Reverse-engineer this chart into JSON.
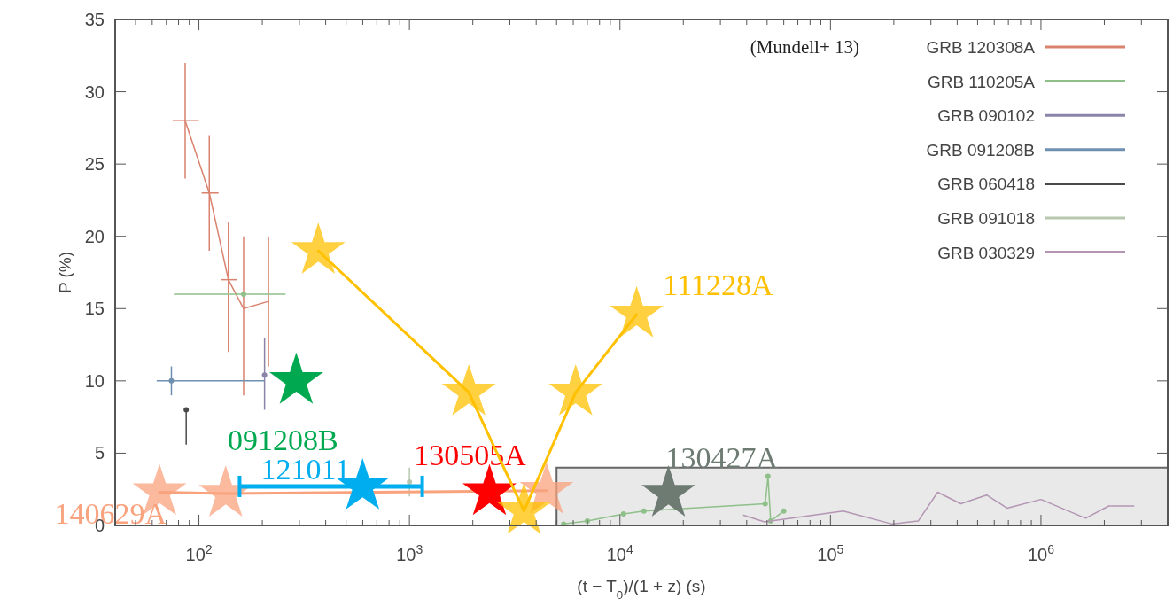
{
  "chart_data": {
    "type": "line",
    "xlabel": "(t − T$_{0}$)/(1 + z) (s)",
    "ylabel": "P (%)",
    "log": "x",
    "xlim": [
      40,
      4000000
    ],
    "ylim": [
      0,
      35
    ],
    "xticks": [
      {
        "value": 50,
        "label": null
      },
      {
        "value": 60,
        "label": null
      },
      {
        "value": 70,
        "label": null
      },
      {
        "value": 80,
        "label": null
      },
      {
        "value": 90,
        "label": null
      },
      {
        "value": 100,
        "label": "10$^{2}$"
      },
      {
        "value": 200,
        "label": null
      },
      {
        "value": 300,
        "label": null
      },
      {
        "value": 400,
        "label": null
      },
      {
        "value": 500,
        "label": null
      },
      {
        "value": 600,
        "label": null
      },
      {
        "value": 700,
        "label": null
      },
      {
        "value": 800,
        "label": null
      },
      {
        "value": 900,
        "label": null
      },
      {
        "value": 1000,
        "label": "10$^{3}$"
      },
      {
        "value": 2000,
        "label": null
      },
      {
        "value": 3000,
        "label": null
      },
      {
        "value": 4000,
        "label": null
      },
      {
        "value": 5000,
        "label": null
      },
      {
        "value": 6000,
        "label": null
      },
      {
        "value": 7000,
        "label": null
      },
      {
        "value": 8000,
        "label": null
      },
      {
        "value": 9000,
        "label": null
      },
      {
        "value": 10000,
        "label": "10$^{4}$"
      },
      {
        "value": 20000,
        "label": null
      },
      {
        "value": 30000,
        "label": null
      },
      {
        "value": 40000,
        "label": null
      },
      {
        "value": 50000,
        "label": null
      },
      {
        "value": 60000,
        "label": null
      },
      {
        "value": 70000,
        "label": null
      },
      {
        "value": 80000,
        "label": null
      },
      {
        "value": 90000,
        "label": null
      },
      {
        "value": 100000,
        "label": "10$^{5}$"
      },
      {
        "value": 200000,
        "label": null
      },
      {
        "value": 300000,
        "label": null
      },
      {
        "value": 400000,
        "label": null
      },
      {
        "value": 500000,
        "label": null
      },
      {
        "value": 600000,
        "label": null
      },
      {
        "value": 700000,
        "label": null
      },
      {
        "value": 800000,
        "label": null
      },
      {
        "value": 900000,
        "label": null
      },
      {
        "value": 1000000,
        "label": "10$^{6}$"
      },
      {
        "value": 2000000,
        "label": null
      },
      {
        "value": 3000000,
        "label": null
      }
    ],
    "yticks": [
      0,
      5,
      10,
      15,
      20,
      25,
      30,
      35
    ],
    "legend": "top right",
    "annotations": [
      "(Mundell+ 13)"
    ],
    "series": [
      {
        "type": "area",
        "color": "#e8e9e8",
        "x": [
          5000,
          4000000
        ],
        "values": [
          4,
          4
        ]
      },
      {
        "name": "GRB 120308A",
        "color": "#d9826e",
        "marker": "none",
        "x": [
          86,
          112,
          138,
          163,
          214
        ],
        "values": [
          28,
          23,
          17,
          15,
          15.5
        ],
        "errors": [
          [
            24,
            32
          ],
          [
            19,
            27
          ],
          [
            12,
            21
          ],
          [
            9,
            20
          ],
          [
            11,
            20
          ]
        ],
        "xerrors": [
          [
            75,
            100
          ],
          [
            103,
            124
          ],
          [
            128,
            152
          ],
          null,
          null
        ]
      },
      {
        "name": "GRB 110205A",
        "color": "#8fc08a",
        "marker": "circle",
        "x": [
          163,
          2000,
          5400,
          7000,
          10400,
          13000,
          49000,
          50500,
          52000,
          60000
        ],
        "values": [
          16,
          null,
          0.1,
          0.3,
          0.8,
          1.0,
          1.5,
          3.4,
          0.3,
          1.0
        ],
        "xerrors": [
          [
            76,
            258
          ],
          null,
          null,
          null,
          null,
          null,
          null,
          null,
          null,
          null
        ]
      },
      {
        "name": "GRB 090102",
        "type": "scatter",
        "color": "#8a84a8",
        "marker": "circle",
        "x": [
          205
        ],
        "values": [
          10.4
        ],
        "errors": [
          [
            8,
            13
          ]
        ]
      },
      {
        "name": "GRB 091208B",
        "type": "scatter",
        "color": "#6f8fb0",
        "marker": "circle",
        "x": [
          74
        ],
        "values": [
          10
        ],
        "errors": [
          [
            9,
            11
          ]
        ],
        "xerrors": [
          [
            63,
            205
          ]
        ]
      },
      {
        "name": "GRB 060418",
        "type": "scatter",
        "color": "#4a4a4a",
        "marker": "circle",
        "x": [
          87
        ],
        "values": [
          8
        ],
        "errors": [
          [
            5.6,
            8
          ]
        ]
      },
      {
        "name": "GRB 091018",
        "type": "scatter",
        "color": "#b8c8b0",
        "marker": "circle",
        "x": [
          1000
        ],
        "values": [
          3
        ],
        "errors": [
          [
            2,
            4
          ]
        ]
      },
      {
        "name": "GRB 030329",
        "color": "#b496b4",
        "marker": "none",
        "x": [
          38700,
          48600,
          115000,
          196000,
          261000,
          323000,
          416000,
          552000,
          690000,
          1000000,
          1630000,
          2100000,
          2760000
        ],
        "values": [
          0.7,
          0.25,
          1.0,
          0.1,
          0.3,
          2.3,
          1.5,
          2.1,
          1.2,
          1.8,
          0.5,
          1.35,
          1.35
        ]
      },
      {
        "name": "140629A",
        "color": "#f9a27e",
        "marker": "star",
        "x": [
          65,
          134,
          4480
        ],
        "values": [
          2.3,
          2.2,
          2.4
        ]
      },
      {
        "name": "121011",
        "type": "scatter",
        "color": "#00aeef",
        "marker": "star",
        "x": [
          599
        ],
        "values": [
          2.7
        ],
        "xerrors": [
          [
            156,
            1150
          ]
        ]
      },
      {
        "name": "091208B",
        "type": "scatter",
        "color": "#00a94f",
        "marker": "star",
        "x": [
          290
        ],
        "values": [
          10
        ]
      },
      {
        "name": "130505A",
        "type": "scatter",
        "color": "#ff0000",
        "marker": "star",
        "x": [
          2400
        ],
        "values": [
          2.3
        ]
      },
      {
        "name": "111228A",
        "color": "#ffc000",
        "marker": "star",
        "x": [
          369,
          1915,
          3500,
          6160,
          12000
        ],
        "values": [
          19,
          9.2,
          1,
          9.2,
          14.6
        ]
      },
      {
        "name": "130427A",
        "type": "scatter",
        "color": "#6d7b73",
        "marker": "star",
        "x": [
          17000
        ],
        "values": [
          2.2
        ]
      }
    ]
  }
}
